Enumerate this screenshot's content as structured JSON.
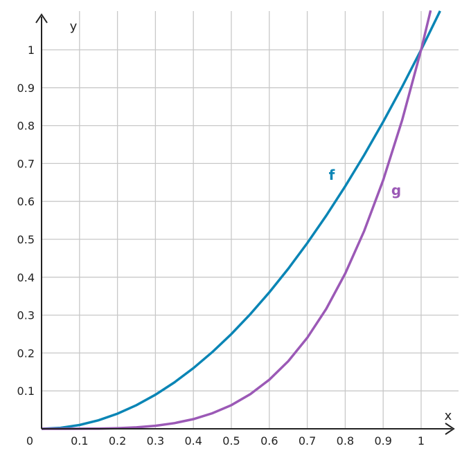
{
  "chart_data": {
    "type": "line",
    "xlabel": "x",
    "ylabel": "y",
    "origin_label": "0",
    "xlim": [
      0,
      1.1
    ],
    "ylim": [
      0,
      1.1
    ],
    "x_ticks": [
      "0.1",
      "0.2",
      "0.3",
      "0.4",
      "0.5",
      "0.6",
      "0.7",
      "0.8",
      "0.9",
      "1"
    ],
    "x_tick_values": [
      0.1,
      0.2,
      0.3,
      0.4,
      0.5,
      0.6,
      0.7,
      0.8,
      0.9,
      1.0
    ],
    "y_ticks": [
      "0.1",
      "0.2",
      "0.3",
      "0.4",
      "0.5",
      "0.6",
      "0.7",
      "0.8",
      "0.9",
      "1"
    ],
    "y_tick_values": [
      0.1,
      0.2,
      0.3,
      0.4,
      0.5,
      0.6,
      0.7,
      0.8,
      0.9,
      1.0
    ],
    "grid": true,
    "series": [
      {
        "name": "f",
        "color": "#0a85b5",
        "x": [
          0,
          0.05,
          0.1,
          0.15,
          0.2,
          0.25,
          0.3,
          0.35,
          0.4,
          0.45,
          0.5,
          0.55,
          0.6,
          0.65,
          0.7,
          0.75,
          0.8,
          0.85,
          0.9,
          0.95,
          1.0,
          1.05
        ],
        "y": [
          0,
          0.0025,
          0.01,
          0.0225,
          0.04,
          0.0625,
          0.09,
          0.1225,
          0.16,
          0.2025,
          0.25,
          0.3025,
          0.36,
          0.4225,
          0.49,
          0.5625,
          0.64,
          0.7225,
          0.81,
          0.9025,
          1.0,
          1.1025
        ]
      },
      {
        "name": "g",
        "color": "#9b59b6",
        "x": [
          0,
          0.05,
          0.1,
          0.15,
          0.2,
          0.25,
          0.3,
          0.35,
          0.4,
          0.45,
          0.5,
          0.55,
          0.6,
          0.65,
          0.7,
          0.75,
          0.8,
          0.85,
          0.9,
          0.95,
          1.0,
          1.025
        ],
        "y": [
          0,
          1e-05,
          0.0001,
          0.0005,
          0.0016,
          0.0039,
          0.0081,
          0.015,
          0.0256,
          0.041,
          0.0625,
          0.0915,
          0.1296,
          0.1785,
          0.2401,
          0.3164,
          0.4096,
          0.522,
          0.6561,
          0.8145,
          1.0,
          1.1038
        ]
      }
    ]
  }
}
